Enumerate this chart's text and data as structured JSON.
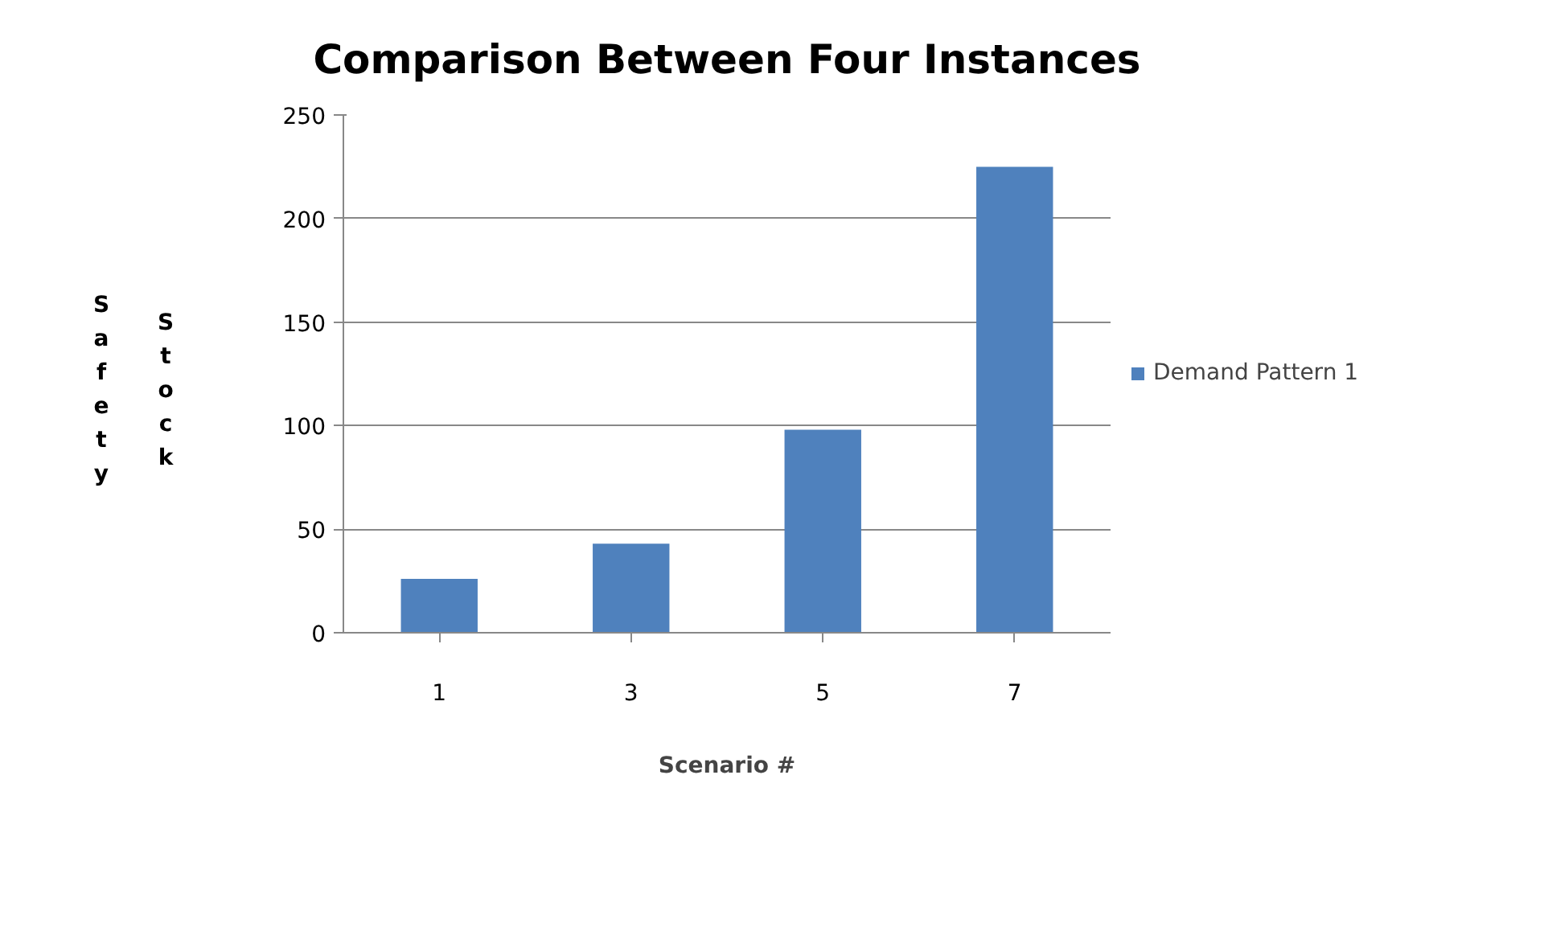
{
  "chart_data": {
    "type": "bar",
    "title": "Comparison Between Four Instances",
    "xlabel": "Scenario #",
    "ylabel": "Safety Stock",
    "categories": [
      "1",
      "3",
      "5",
      "7"
    ],
    "series": [
      {
        "name": "Demand Pattern 1",
        "color": "#4f81bd",
        "values": [
          26,
          43,
          98,
          225
        ]
      }
    ],
    "ylim": [
      0,
      250
    ],
    "yticks": [
      0,
      50,
      100,
      150,
      200,
      250
    ],
    "grid": "y",
    "legend": "right"
  }
}
